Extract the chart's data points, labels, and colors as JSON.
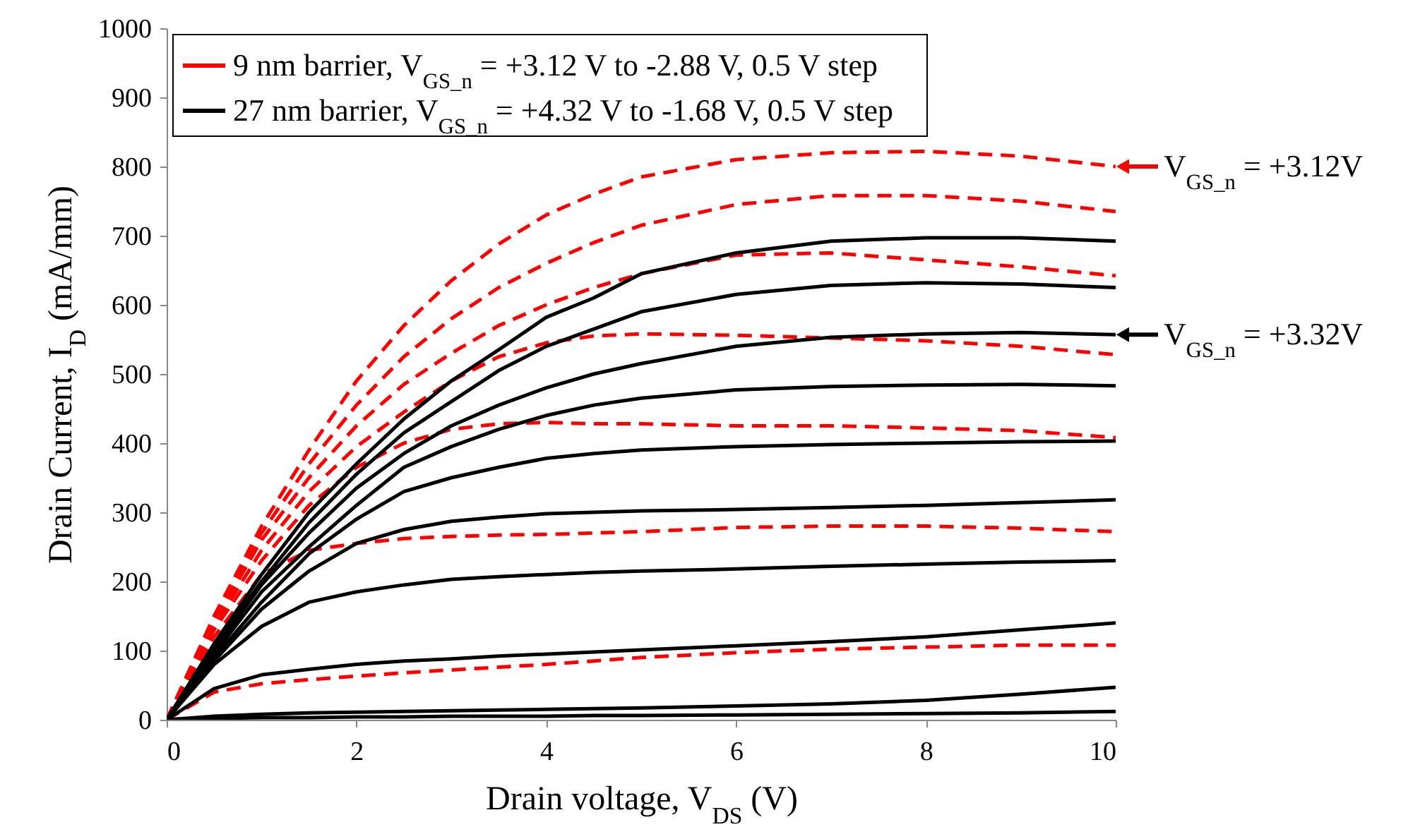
{
  "chart_data": {
    "type": "line",
    "xlabel": "Drain voltage, V$_{DS}$ (V)",
    "ylabel": "Drain Current, I$_{D}$ (mA/mm)",
    "x": [
      0,
      0.5,
      1,
      1.5,
      2,
      2.5,
      3,
      3.5,
      4,
      4.5,
      5,
      6,
      7,
      8,
      9,
      10
    ],
    "xlim": [
      0,
      10
    ],
    "xticks": [
      0,
      2,
      4,
      6,
      8,
      10
    ],
    "ylim": [
      0,
      1000
    ],
    "yticks": [
      0,
      100,
      200,
      300,
      400,
      500,
      600,
      700,
      800,
      900,
      1000
    ],
    "grid": false,
    "legend": "top left",
    "marker": "none",
    "series": [
      {
        "name": "9 nm barrier, V$_{GS_n}$ = +3.12 V to -2.88 V, 0.5 V step",
        "color": "#ff0000",
        "line_style": "dashed",
        "values": [
          0,
          150,
          280,
          390,
          490,
          570,
          635,
          688,
          730,
          760,
          785,
          810,
          820,
          822,
          815,
          800
        ]
      },
      {
        "color": "#ff0000",
        "line_style": "dashed",
        "values": [
          0,
          145,
          270,
          370,
          455,
          525,
          580,
          625,
          660,
          690,
          715,
          745,
          758,
          758,
          750,
          735
        ]
      },
      {
        "color": "#ff0000",
        "line_style": "dashed",
        "values": [
          0,
          140,
          260,
          350,
          425,
          485,
          530,
          570,
          600,
          625,
          645,
          672,
          675,
          665,
          655,
          642
        ]
      },
      {
        "color": "#ff0000",
        "line_style": "dashed",
        "values": [
          0,
          135,
          245,
          330,
          395,
          445,
          490,
          525,
          545,
          555,
          558,
          556,
          552,
          548,
          540,
          528
        ]
      },
      {
        "color": "#ff0000",
        "line_style": "dashed",
        "values": [
          0,
          130,
          230,
          310,
          365,
          400,
          420,
          428,
          430,
          428,
          428,
          425,
          425,
          422,
          418,
          408
        ]
      },
      {
        "color": "#ff0000",
        "line_style": "dashed",
        "values": [
          0,
          120,
          210,
          245,
          255,
          262,
          265,
          267,
          268,
          270,
          272,
          278,
          280,
          280,
          277,
          272
        ]
      },
      {
        "color": "#ff0000",
        "line_style": "dashed",
        "values": [
          0,
          40,
          52,
          58,
          63,
          68,
          72,
          76,
          80,
          85,
          90,
          97,
          102,
          105,
          108,
          108
        ]
      },
      {
        "name": "27 nm barrier, V$_{GS_n}$ = +4.32 V to -1.68 V, 0.5 V step",
        "color": "#000000",
        "line_style": "solid",
        "values": [
          0,
          110,
          210,
          300,
          370,
          435,
          490,
          535,
          582,
          610,
          645,
          675,
          692,
          697,
          697,
          692
        ]
      },
      {
        "color": "#000000",
        "line_style": "solid",
        "values": [
          0,
          105,
          200,
          285,
          355,
          415,
          460,
          505,
          540,
          565,
          590,
          615,
          628,
          632,
          630,
          625
        ]
      },
      {
        "color": "#000000",
        "line_style": "solid",
        "values": [
          0,
          100,
          195,
          270,
          335,
          385,
          425,
          455,
          480,
          500,
          515,
          540,
          553,
          558,
          560,
          557
        ]
      },
      {
        "color": "#000000",
        "line_style": "solid",
        "values": [
          0,
          95,
          185,
          250,
          310,
          365,
          395,
          420,
          440,
          455,
          465,
          477,
          482,
          484,
          485,
          483
        ]
      },
      {
        "color": "#000000",
        "line_style": "solid",
        "values": [
          0,
          90,
          170,
          240,
          290,
          330,
          350,
          365,
          378,
          385,
          390,
          395,
          398,
          400,
          402,
          403
        ]
      },
      {
        "color": "#000000",
        "line_style": "solid",
        "values": [
          0,
          85,
          160,
          215,
          255,
          275,
          287,
          293,
          298,
          300,
          302,
          304,
          307,
          310,
          314,
          318
        ]
      },
      {
        "color": "#000000",
        "line_style": "solid",
        "values": [
          0,
          80,
          135,
          170,
          185,
          195,
          203,
          207,
          210,
          213,
          215,
          218,
          222,
          225,
          228,
          230
        ]
      },
      {
        "color": "#000000",
        "line_style": "solid",
        "values": [
          0,
          45,
          65,
          73,
          80,
          85,
          88,
          92,
          95,
          98,
          101,
          107,
          113,
          120,
          130,
          140
        ]
      },
      {
        "color": "#000000",
        "line_style": "solid",
        "values": [
          0,
          5,
          8,
          10,
          11,
          12,
          13,
          14,
          15,
          16,
          17,
          20,
          23,
          28,
          37,
          47
        ]
      },
      {
        "color": "#000000",
        "line_style": "solid",
        "values": [
          0,
          2,
          3,
          3,
          4,
          4,
          5,
          5,
          5,
          6,
          6,
          7,
          8,
          9,
          10,
          12
        ]
      }
    ],
    "annotations": [
      {
        "text": "V$_{GS_n}$ = +3.12V",
        "x": 10,
        "y": 800
      },
      {
        "text": "V$_{GS_n}$ = +3.32V",
        "x": 10,
        "y": 557
      }
    ]
  }
}
